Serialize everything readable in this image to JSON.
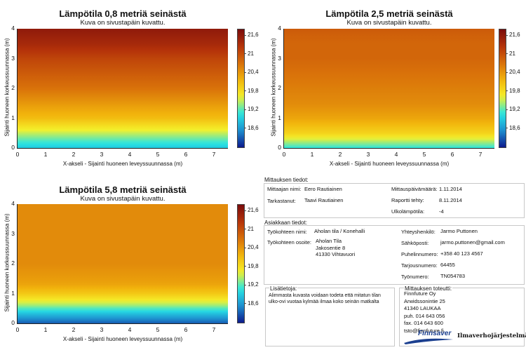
{
  "chart_data": [
    {
      "type": "heatmap",
      "title": "Lämpötila 0,8 metriä seinästä",
      "subtitle": "Kuva on sivustapäin kuvattu.",
      "xlabel": "X-akseli - Sijainti huoneen leveyssuunnassa (m)",
      "ylabel": "Sijainti huoneen korkeussuunnassa (m)",
      "xlim": [
        0,
        7.5
      ],
      "ylim": [
        0,
        4
      ],
      "x_ticks": [
        "0",
        "1",
        "2",
        "3",
        "4",
        "5",
        "6",
        "7"
      ],
      "y_ticks": [
        "0",
        "1",
        "2",
        "3",
        "4"
      ],
      "colorbar": {
        "range": [
          18.0,
          21.8
        ],
        "ticks": [
          "21,6",
          "21",
          "20,4",
          "19,8",
          "19,2",
          "18,6"
        ]
      },
      "profile": {
        "y": [
          0,
          0.5,
          1,
          1.5,
          2,
          2.5,
          3,
          3.5,
          4
        ],
        "temperature": [
          18.9,
          19.5,
          20.1,
          20.4,
          20.7,
          20.9,
          21.1,
          21.4,
          21.6
        ]
      }
    },
    {
      "type": "heatmap",
      "title": "Lämpötila 2,5 metriä seinästä",
      "subtitle": "Kuva on sivustapäin kuvattu.",
      "xlabel": "X-akseli - Sijainti huoneen leveyssuunnassa (m)",
      "ylabel": "Sijainti huoneen korkeussuunnassa (m)",
      "xlim": [
        0,
        7.5
      ],
      "ylim": [
        0,
        4
      ],
      "x_ticks": [
        "0",
        "1",
        "2",
        "3",
        "4",
        "5",
        "6",
        "7"
      ],
      "y_ticks": [
        "0",
        "1",
        "2",
        "3",
        "4"
      ],
      "colorbar": {
        "range": [
          18.0,
          21.8
        ],
        "ticks": [
          "21,6",
          "21",
          "20,4",
          "19,8",
          "19,2",
          "18,6"
        ]
      },
      "profile": {
        "y": [
          0,
          0.5,
          1,
          1.5,
          2,
          2.5,
          3,
          3.5,
          4
        ],
        "temperature": [
          19.1,
          19.9,
          20.3,
          20.5,
          20.6,
          20.7,
          20.8,
          20.8,
          20.9
        ]
      }
    },
    {
      "type": "heatmap",
      "title": "Lämpötila 5,8 metriä seinästä",
      "subtitle": "Kuva on sivustapäin kuvattu.",
      "xlabel": "X-akseli - Sijainti huoneen leveyssuunnassa (m)",
      "ylabel": "Sijainti huoneen korkeussuunnassa (m)",
      "xlim": [
        0,
        7.5
      ],
      "ylim": [
        0,
        4
      ],
      "x_ticks": [
        "0",
        "1",
        "2",
        "3",
        "4",
        "5",
        "6",
        "7"
      ],
      "y_ticks": [
        "0",
        "1",
        "2",
        "3",
        "4"
      ],
      "colorbar": {
        "range": [
          18.0,
          21.8
        ],
        "ticks": [
          "21,6",
          "21",
          "20,4",
          "19,8",
          "19,2",
          "18,6"
        ]
      },
      "profile": {
        "y": [
          0,
          0.3,
          0.6,
          1,
          1.3,
          1.6,
          2,
          3,
          4
        ],
        "temperature": [
          18.3,
          18.8,
          19.4,
          20.0,
          20.3,
          20.4,
          20.5,
          20.5,
          20.5
        ]
      }
    }
  ],
  "colorscale": [
    "#0d1a8c",
    "#1e90d0",
    "#27e6e6",
    "#f5f02a",
    "#f2b50c",
    "#d8700a",
    "#b5330a",
    "#7a0c0c"
  ],
  "measurement": {
    "heading": "Mittauksen tiedot:",
    "measurer_label": "Mittaajan nimi:",
    "measurer": "Eero Rautiainen",
    "checker_label": "Tarkastanut:",
    "checker": "Taavi Rautiainen",
    "date_label": "Mittauspäivämäärä:",
    "date": "1.11.2014",
    "report_label": "Raportti tehty:",
    "report": "8.11.2014",
    "outdoor_label": "Ulkolämpötila:",
    "outdoor": "-4"
  },
  "customer": {
    "heading": "Asiakkaan tiedot:",
    "site_label": "Työkohteen nimi:",
    "site": "Aholan tila / Konehalli",
    "address_label": "Työkohteen osoite:",
    "address": "Aholan Tila\nJakosentie 8\n41330 Vihtavuori",
    "contact_label": "Yhteyshenkilö:",
    "contact": "Jarmo Puttonen",
    "email_label": "Sähköposti:",
    "email": "jarmo.puttonen@gmail.com",
    "phone_label": "Puhelinnumero:",
    "phone": "+358 40 123 4567",
    "offer_label": "Tarjousnumero:",
    "offer": "64455",
    "job_label": "Työnumero:",
    "job": "TN054783"
  },
  "notes": {
    "heading": "Lisätietoja:",
    "text": "Alimmasta kuvasta voidaan todeta että mitatun tilan\nulko-ovi vuotaa kylmää ilmaa koko seinän matkalta"
  },
  "executor": {
    "heading": "Mittauksen toteutti:",
    "text": "Finnfuture Oy\nArwidssonintie 25\n41340 LAUKAA\npuh. 014 643 056\nfax. 014 643 600\ntsto@finnfuture.fi",
    "logo_left": "Finnsaver",
    "logo_right": "Ilmaverhojärjestelmät"
  }
}
